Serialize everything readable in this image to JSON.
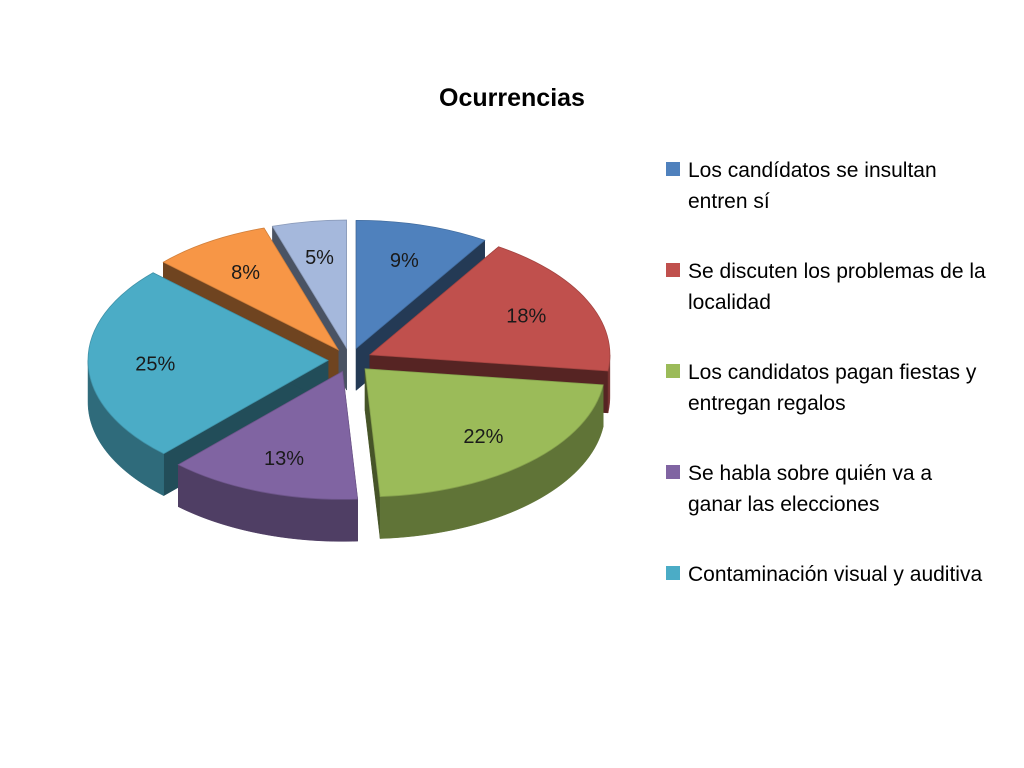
{
  "chart_data": {
    "type": "pie",
    "title": "Ocurrencias",
    "legend_position": "right",
    "slices": [
      {
        "name": "Los candídatos se insultan entren sí",
        "value": 9,
        "label": "9%",
        "color": "#4F81BD"
      },
      {
        "name": "Se discuten los problemas de la localidad",
        "value": 18,
        "label": "18%",
        "color": "#C0504D"
      },
      {
        "name": "Los candidatos pagan fiestas y entregan regalos",
        "value": 22,
        "label": "22%",
        "color": "#9BBB59"
      },
      {
        "name": "Se habla sobre quién va a ganar las elecciones",
        "value": 13,
        "label": "13%",
        "color": "#8064A2"
      },
      {
        "name": "Contaminación visual y auditiva",
        "value": 25,
        "label": "25%",
        "color": "#4BACC6"
      },
      {
        "name": "",
        "value": 8,
        "label": "8%",
        "color": "#F79646"
      },
      {
        "name": "",
        "value": 5,
        "label": "5%",
        "color": "#A5B8DC"
      }
    ]
  }
}
